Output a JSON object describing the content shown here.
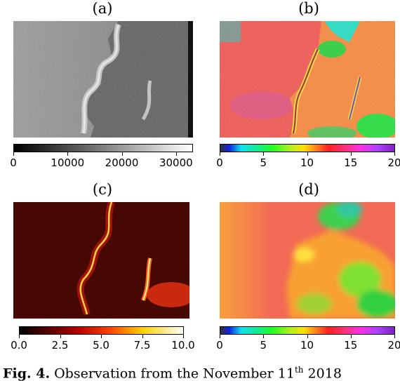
{
  "panels": {
    "a": {
      "label": "(a)"
    },
    "b": {
      "label": "(b)"
    },
    "c": {
      "label": "(c)"
    },
    "d": {
      "label": "(d)"
    }
  },
  "colorbars": {
    "a": {
      "ticks": [
        "0",
        "10000",
        "20000",
        "30000"
      ],
      "range": [
        0,
        33000
      ],
      "values": [
        0,
        10000,
        20000,
        30000
      ],
      "colormap": "gray"
    },
    "b": {
      "ticks": [
        "0",
        "5",
        "10",
        "15",
        "20"
      ],
      "range": [
        0,
        20
      ],
      "values": [
        0,
        5,
        10,
        15,
        20
      ],
      "colormap": "gist_ncar"
    },
    "c": {
      "ticks": [
        "0.0",
        "2.5",
        "5.0",
        "7.5",
        "10.0"
      ],
      "range": [
        0,
        10
      ],
      "values": [
        0,
        2.5,
        5,
        7.5,
        10
      ],
      "colormap": "hot"
    },
    "d": {
      "ticks": [
        "0",
        "5",
        "10",
        "15",
        "20"
      ],
      "range": [
        0,
        20
      ],
      "values": [
        0,
        5,
        10,
        15,
        20
      ],
      "colormap": "gist_ncar"
    }
  },
  "caption": {
    "prefix": "Fig. 4.",
    "text": "Observation from the November 11",
    "superscript": "th",
    "suffix": " 2018"
  }
}
